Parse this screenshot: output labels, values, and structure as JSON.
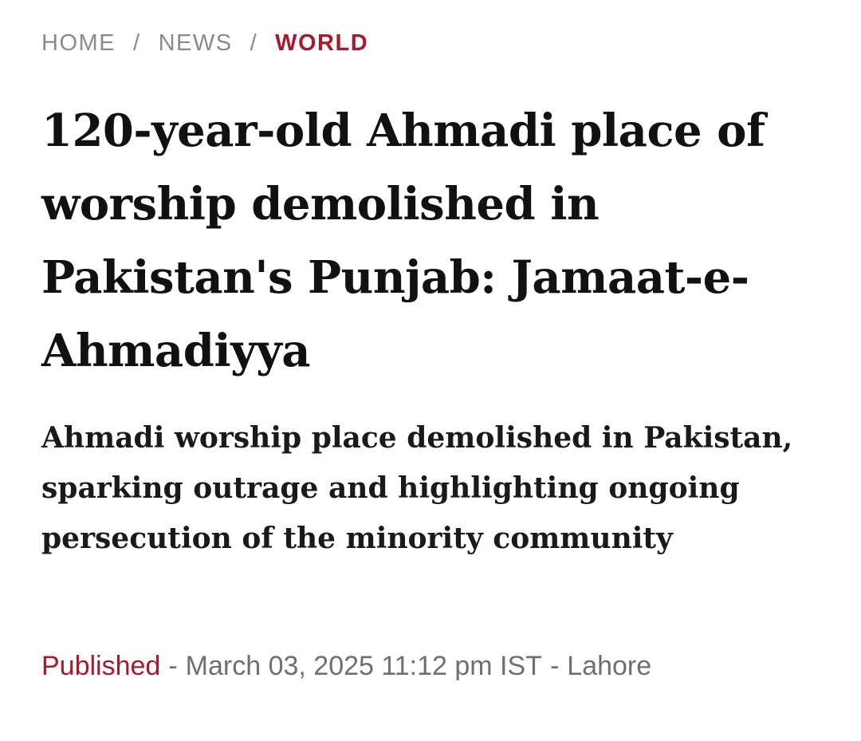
{
  "breadcrumb": {
    "items": [
      "HOME",
      "NEWS"
    ],
    "separator": "/",
    "current": "WORLD"
  },
  "article": {
    "headline": "120-year-old Ahmadi place of worship demolished in Pakistan's Punjab: Jamaat-e-Ahmadiyya",
    "standfirst": "Ahmadi worship place demolished in Pakistan, sparking outrage and highlighting ongoing persecution of the minority community",
    "published_label": "Published",
    "published_datetime": "March 03, 2025 11:12 pm IST",
    "location": "Lahore",
    "dash": "-"
  },
  "colors": {
    "accent": "#a8192e",
    "meta_text": "#6f6f6f",
    "breadcrumb_text": "#8a8a8a",
    "headline_text": "#111111"
  }
}
